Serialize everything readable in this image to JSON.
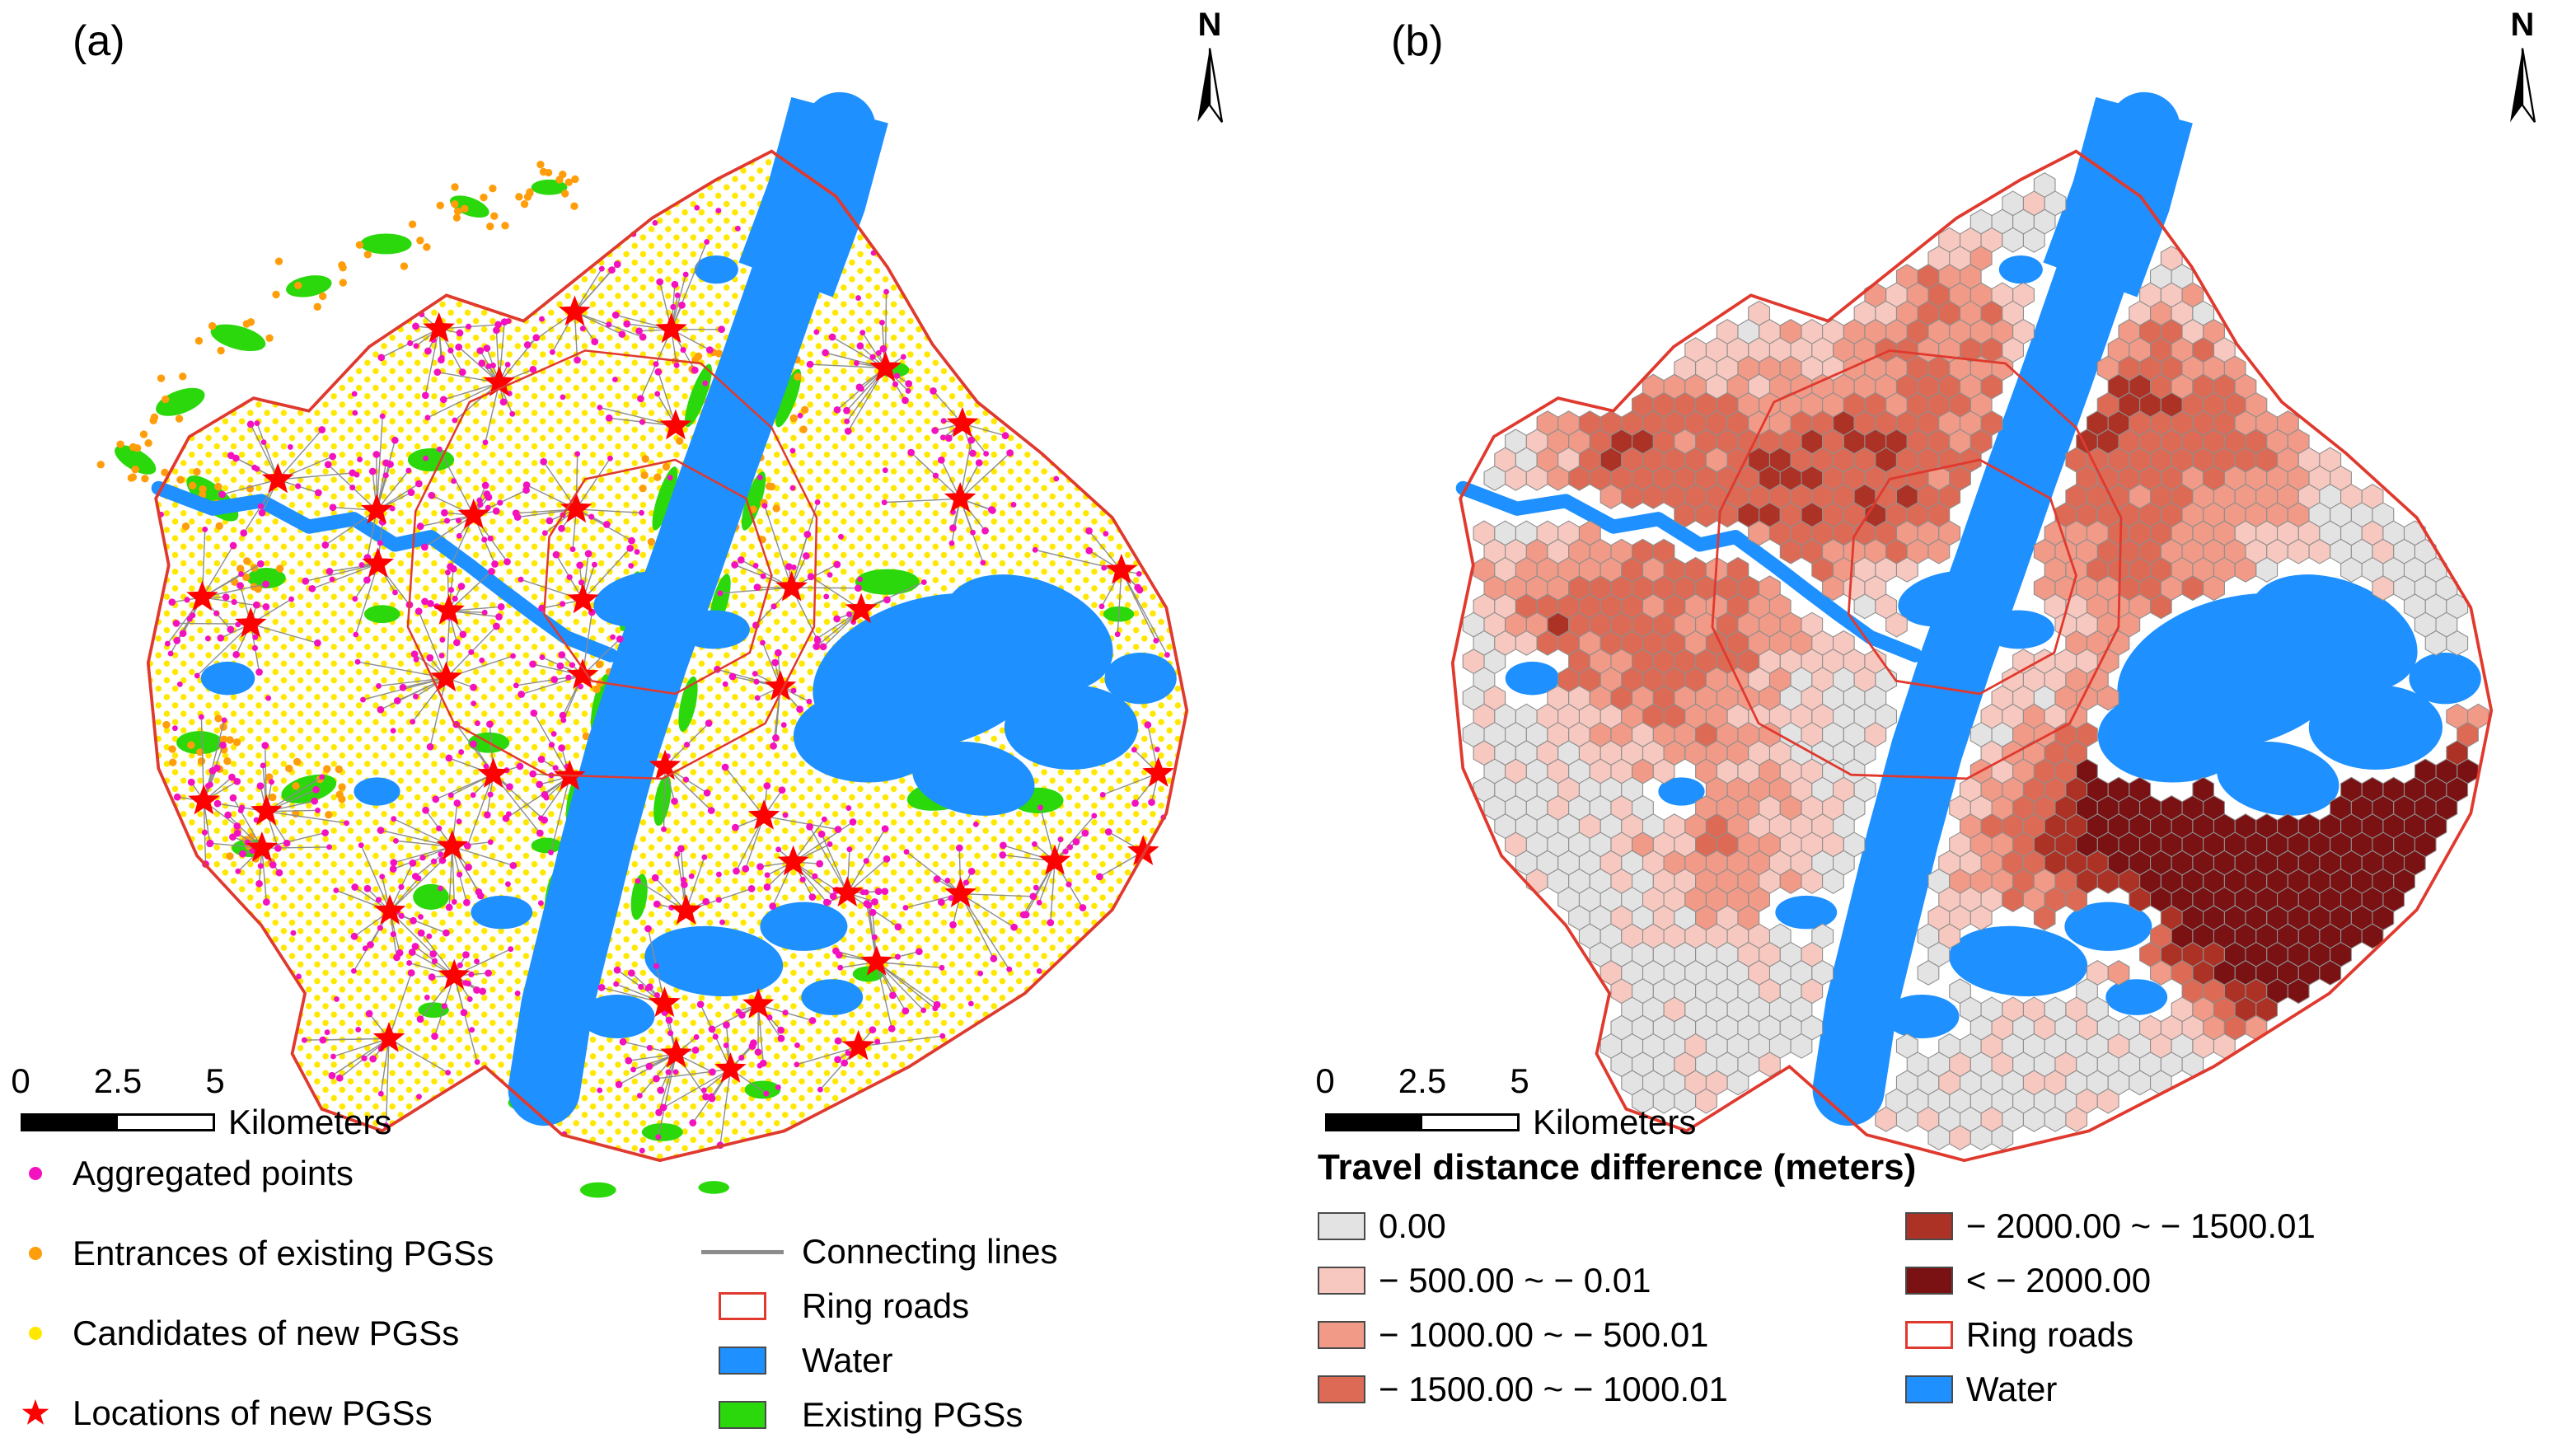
{
  "figure": {
    "colors": {
      "water": "#1E90FF",
      "pgs_green": "#2BD80B",
      "candidate_yellow": "#FFE800",
      "aggregated_magenta": "#F411BE",
      "entrance_orange": "#FF9D0A",
      "star_red": "#FF0000",
      "ring_red": "#E0392E",
      "line_gray": "#8C8C8C",
      "hex_classes": [
        "#E3E3E3",
        "#F7C8BF",
        "#F09A87",
        "#DC6A55",
        "#AD3226",
        "#7A1113"
      ]
    },
    "panel_a": {
      "label": "(a)",
      "north_label": "N",
      "scalebar": {
        "ticks": [
          "0",
          "2.5",
          "5"
        ],
        "unit": "Kilometers"
      },
      "legend": {
        "left": [
          {
            "label": "Aggregated points",
            "color": "#F411BE"
          },
          {
            "label": "Entrances of existing PGSs",
            "color": "#FF9D0A"
          },
          {
            "label": "Candidates of new PGSs",
            "color": "#FFE800"
          },
          {
            "label": "Locations of new PGSs",
            "color": "#FF0000"
          }
        ],
        "right": [
          {
            "label": "Connecting lines",
            "color": "#8C8C8C"
          },
          {
            "label": "Ring roads",
            "color": "#E0392E"
          },
          {
            "label": "Water",
            "color": "#1E90FF"
          },
          {
            "label": "Existing PGSs",
            "color": "#2BD80B"
          }
        ]
      }
    },
    "panel_b": {
      "label": "(b)",
      "north_label": "N",
      "scalebar": {
        "ticks": [
          "0",
          "2.5",
          "5"
        ],
        "unit": "Kilometers"
      },
      "legend_title": "Travel distance difference (meters)",
      "legend": {
        "left": [
          {
            "label": "0.00",
            "color": "#E3E3E3"
          },
          {
            "label": "− 500.00 ~ − 0.01",
            "color": "#F7C8BF"
          },
          {
            "label": "− 1000.00 ~ − 500.01",
            "color": "#F09A87"
          },
          {
            "label": "− 1500.00 ~ − 1000.01",
            "color": "#DC6A55"
          }
        ],
        "right": [
          {
            "label": "− 2000.00 ~ − 1500.01",
            "color": "#AD3226"
          },
          {
            "label": "< − 2000.00",
            "color": "#7A1113"
          },
          {
            "label": "Ring roads",
            "color": "#E0392E"
          },
          {
            "label": "Water",
            "color": "#1E90FF"
          }
        ]
      }
    }
  }
}
